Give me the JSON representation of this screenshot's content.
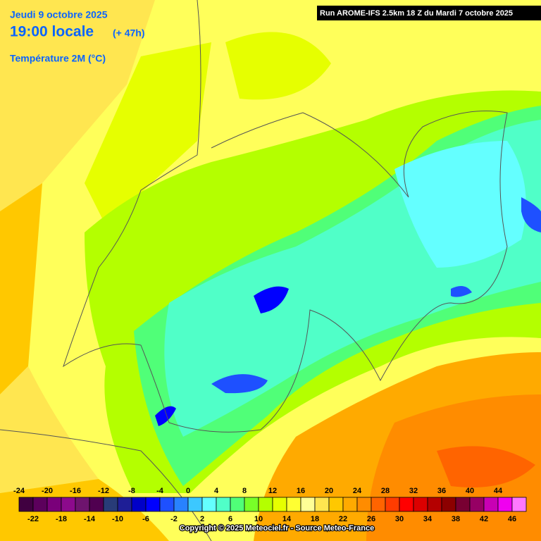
{
  "header": {
    "date": "Jeudi 9 octobre 2025",
    "time": "19:00 locale",
    "lead": "(+ 47h)",
    "variable": "Température 2M (°C)",
    "run": "Run AROME-IFS 2.5km 18 Z du Mardi 7 octobre 2025"
  },
  "legend": {
    "stops": [
      {
        "value": -24,
        "color": "#400040"
      },
      {
        "value": -22,
        "color": "#5c005c"
      },
      {
        "value": -20,
        "color": "#7a007a"
      },
      {
        "value": -18,
        "color": "#8c0a8c"
      },
      {
        "value": -16,
        "color": "#6e146e"
      },
      {
        "value": -14,
        "color": "#500050"
      },
      {
        "value": -12,
        "color": "#283c78"
      },
      {
        "value": -10,
        "color": "#1e1e96"
      },
      {
        "value": -8,
        "color": "#0000c8"
      },
      {
        "value": -6,
        "color": "#0000ff"
      },
      {
        "value": -4,
        "color": "#1e50ff"
      },
      {
        "value": -2,
        "color": "#2882ff"
      },
      {
        "value": 0,
        "color": "#3cc8ff"
      },
      {
        "value": 2,
        "color": "#64ffff"
      },
      {
        "value": 4,
        "color": "#50ffc8"
      },
      {
        "value": 6,
        "color": "#50ff78"
      },
      {
        "value": 8,
        "color": "#78ff28"
      },
      {
        "value": 10,
        "color": "#b4ff00"
      },
      {
        "value": 12,
        "color": "#e6ff00"
      },
      {
        "value": 14,
        "color": "#ffff32"
      },
      {
        "value": 16,
        "color": "#ffff96"
      },
      {
        "value": 18,
        "color": "#ffe650"
      },
      {
        "value": 20,
        "color": "#ffc800"
      },
      {
        "value": 22,
        "color": "#ffaa00"
      },
      {
        "value": 24,
        "color": "#ff8c00"
      },
      {
        "value": 26,
        "color": "#ff6400"
      },
      {
        "value": 28,
        "color": "#ff3c00"
      },
      {
        "value": 30,
        "color": "#ff0000"
      },
      {
        "value": 32,
        "color": "#dc0000"
      },
      {
        "value": 34,
        "color": "#b40000"
      },
      {
        "value": 36,
        "color": "#8c0000"
      },
      {
        "value": 38,
        "color": "#780032"
      },
      {
        "value": 40,
        "color": "#960064"
      },
      {
        "value": 42,
        "color": "#c800b4"
      },
      {
        "value": 44,
        "color": "#f000f0"
      },
      {
        "value": 46,
        "color": "#ff78ff"
      }
    ]
  },
  "footer": {
    "copyright": "Copyright © 2025 Meteociel.fr - Source Meteo-France"
  }
}
